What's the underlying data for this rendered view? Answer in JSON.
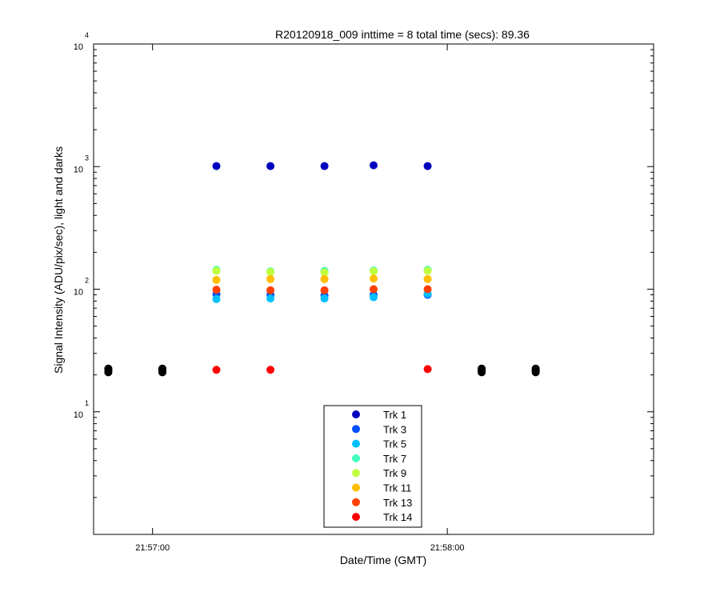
{
  "chart_data": {
    "type": "scatter",
    "title": "R20120918_009 inttime = 8 total time (secs): 89.36",
    "xlabel": "Date/Time (GMT)",
    "ylabel": "Signal Intensity (ADU/pix/sec), light and darks",
    "y_scale": "log",
    "ylim": [
      1,
      10000
    ],
    "xlim": [
      "21:56:48",
      "21:58:42"
    ],
    "x_tick_labels": [
      "21:57:00",
      "21:58:00"
    ],
    "y_ticks": [
      {
        "base": "10",
        "exp": "1"
      },
      {
        "base": "10",
        "exp": "2"
      },
      {
        "base": "10",
        "exp": "3"
      },
      {
        "base": "10",
        "exp": "4"
      }
    ],
    "grid": false,
    "legend_position": "bottom-center",
    "dark_color": "#000000",
    "series": [
      {
        "name": "Trk 1",
        "color": "#0000bf",
        "x": [
          "21:57:13",
          "21:57:24",
          "21:57:35",
          "21:57:45",
          "21:57:56"
        ],
        "y": [
          1010,
          1010,
          1010,
          1025,
          1010
        ]
      },
      {
        "name": "Trk 3",
        "color": "#0050ff",
        "x": [
          "21:57:13",
          "21:57:24",
          "21:57:35",
          "21:57:45",
          "21:57:56"
        ],
        "y": [
          91,
          90,
          89,
          90,
          90
        ]
      },
      {
        "name": "Trk 5",
        "color": "#00bfff",
        "x": [
          "21:57:13",
          "21:57:24",
          "21:57:35",
          "21:57:45",
          "21:57:56"
        ],
        "y": [
          83,
          84,
          84,
          86,
          92
        ]
      },
      {
        "name": "Trk 7",
        "color": "#40ffbf",
        "x": [
          "21:57:13",
          "21:57:24",
          "21:57:35",
          "21:57:45",
          "21:57:56"
        ],
        "y": [
          144,
          140,
          141,
          142,
          144
        ]
      },
      {
        "name": "Trk 9",
        "color": "#bfff40",
        "x": [
          "21:57:13",
          "21:57:24",
          "21:57:35",
          "21:57:45",
          "21:57:56"
        ],
        "y": [
          141,
          138,
          137,
          140,
          141
        ]
      },
      {
        "name": "Trk 11",
        "color": "#ffbf00",
        "x": [
          "21:57:13",
          "21:57:24",
          "21:57:35",
          "21:57:45",
          "21:57:56"
        ],
        "y": [
          119,
          121,
          121,
          122,
          121
        ]
      },
      {
        "name": "Trk 13",
        "color": "#ff4000",
        "x": [
          "21:57:13",
          "21:57:24",
          "21:57:35",
          "21:57:45",
          "21:57:56"
        ],
        "y": [
          99,
          98,
          98,
          100,
          100
        ]
      },
      {
        "name": "Trk 14",
        "color": "#ff0000",
        "x": [
          "21:57:13",
          "21:57:24",
          "21:57:56"
        ],
        "y": [
          22,
          22,
          22.3
        ]
      }
    ],
    "darks": {
      "x": [
        "21:56:51",
        "21:57:02",
        "21:58:07",
        "21:58:18"
      ],
      "y_values": [
        21,
        21.5,
        22,
        22.5
      ]
    }
  }
}
